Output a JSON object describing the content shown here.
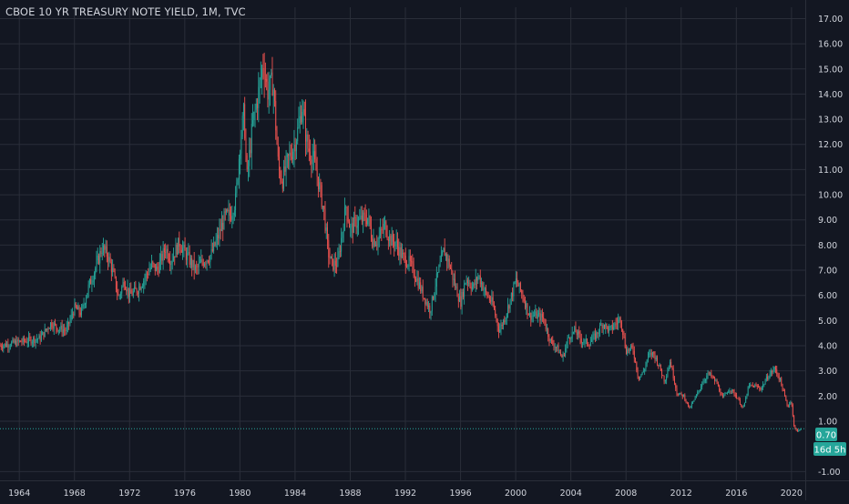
{
  "header": {
    "title": "CBOE 10 YR TREASURY NOTE YIELD, 1M, TVC"
  },
  "price_tag": {
    "value": "0.70",
    "countdown": "16d 5h"
  },
  "colors": {
    "background": "#131722",
    "grid": "#2a2e39",
    "axis_text": "#d1d4dc",
    "up": "#26a69a",
    "down": "#ef5350",
    "last_price": "#26a69a"
  },
  "chart_data": {
    "type": "candlestick",
    "title": "CBOE 10 YR TREASURY NOTE YIELD, 1M, TVC",
    "x_ticks": [
      "1964",
      "1968",
      "1972",
      "1976",
      "1980",
      "1984",
      "1988",
      "1992",
      "1996",
      "2000",
      "2004",
      "2008",
      "2012",
      "2016",
      "2020"
    ],
    "y_ticks": [
      "-1.00",
      "1.00",
      "2.00",
      "3.00",
      "4.00",
      "5.00",
      "6.00",
      "7.00",
      "8.00",
      "9.00",
      "10.00",
      "11.00",
      "12.00",
      "13.00",
      "14.00",
      "15.00",
      "16.00",
      "17.00"
    ],
    "xlim": [
      1962.6,
      2021.0
    ],
    "ylim": [
      -1.35,
      17.45
    ],
    "grid": true,
    "last_price": 0.7,
    "series": [
      {
        "type": "close_path",
        "points": [
          [
            1962.6,
            4.0
          ],
          [
            1963.5,
            4.1
          ],
          [
            1964.5,
            4.2
          ],
          [
            1965.5,
            4.3
          ],
          [
            1966.3,
            4.9
          ],
          [
            1966.8,
            4.7
          ],
          [
            1967.4,
            4.6
          ],
          [
            1968.0,
            5.5
          ],
          [
            1968.5,
            5.3
          ],
          [
            1969.0,
            6.3
          ],
          [
            1969.6,
            7.2
          ],
          [
            1970.0,
            7.9
          ],
          [
            1970.4,
            7.6
          ],
          [
            1970.8,
            6.9
          ],
          [
            1971.2,
            5.9
          ],
          [
            1971.6,
            6.6
          ],
          [
            1972.0,
            6.0
          ],
          [
            1972.5,
            6.2
          ],
          [
            1973.0,
            6.6
          ],
          [
            1973.6,
            7.2
          ],
          [
            1974.0,
            7.0
          ],
          [
            1974.6,
            7.9
          ],
          [
            1975.0,
            7.4
          ],
          [
            1975.6,
            8.1
          ],
          [
            1976.0,
            7.7
          ],
          [
            1976.8,
            7.0
          ],
          [
            1977.2,
            7.3
          ],
          [
            1977.9,
            7.6
          ],
          [
            1978.4,
            8.3
          ],
          [
            1978.9,
            9.1
          ],
          [
            1979.3,
            9.2
          ],
          [
            1979.7,
            9.8
          ],
          [
            1980.0,
            12.0
          ],
          [
            1980.3,
            13.3
          ],
          [
            1980.5,
            10.6
          ],
          [
            1980.9,
            12.7
          ],
          [
            1981.3,
            13.9
          ],
          [
            1981.7,
            15.3
          ],
          [
            1982.0,
            14.1
          ],
          [
            1982.4,
            14.5
          ],
          [
            1982.8,
            11.0
          ],
          [
            1983.1,
            10.6
          ],
          [
            1983.5,
            11.4
          ],
          [
            1983.9,
            11.9
          ],
          [
            1984.3,
            12.8
          ],
          [
            1984.5,
            13.6
          ],
          [
            1984.9,
            11.9
          ],
          [
            1985.3,
            11.5
          ],
          [
            1985.7,
            10.5
          ],
          [
            1986.1,
            9.3
          ],
          [
            1986.4,
            7.7
          ],
          [
            1986.7,
            7.2
          ],
          [
            1987.1,
            7.3
          ],
          [
            1987.7,
            9.6
          ],
          [
            1988.0,
            8.6
          ],
          [
            1988.4,
            8.9
          ],
          [
            1988.8,
            9.0
          ],
          [
            1989.3,
            9.1
          ],
          [
            1989.6,
            8.2
          ],
          [
            1990.0,
            8.2
          ],
          [
            1990.5,
            8.8
          ],
          [
            1990.9,
            8.2
          ],
          [
            1991.3,
            8.1
          ],
          [
            1991.8,
            7.5
          ],
          [
            1992.3,
            7.3
          ],
          [
            1992.8,
            6.7
          ],
          [
            1993.3,
            6.0
          ],
          [
            1993.8,
            5.4
          ],
          [
            1994.2,
            6.5
          ],
          [
            1994.8,
            7.8
          ],
          [
            1995.2,
            7.2
          ],
          [
            1995.6,
            6.4
          ],
          [
            1996.0,
            5.7
          ],
          [
            1996.4,
            6.7
          ],
          [
            1996.9,
            6.3
          ],
          [
            1997.3,
            6.8
          ],
          [
            1997.8,
            6.1
          ],
          [
            1998.3,
            5.7
          ],
          [
            1998.8,
            4.6
          ],
          [
            1999.2,
            5.1
          ],
          [
            1999.7,
            6.0
          ],
          [
            2000.0,
            6.6
          ],
          [
            2000.5,
            6.0
          ],
          [
            2001.0,
            5.2
          ],
          [
            2001.5,
            5.2
          ],
          [
            2002.0,
            5.1
          ],
          [
            2002.5,
            4.2
          ],
          [
            2003.0,
            3.9
          ],
          [
            2003.4,
            3.5
          ],
          [
            2003.8,
            4.3
          ],
          [
            2004.3,
            4.6
          ],
          [
            2004.8,
            4.2
          ],
          [
            2005.3,
            4.1
          ],
          [
            2005.8,
            4.4
          ],
          [
            2006.3,
            4.9
          ],
          [
            2006.8,
            4.6
          ],
          [
            2007.3,
            4.9
          ],
          [
            2007.6,
            5.1
          ],
          [
            2008.0,
            3.8
          ],
          [
            2008.5,
            3.9
          ],
          [
            2008.9,
            2.7
          ],
          [
            2009.3,
            3.0
          ],
          [
            2009.6,
            3.6
          ],
          [
            2010.0,
            3.7
          ],
          [
            2010.4,
            3.2
          ],
          [
            2010.8,
            2.6
          ],
          [
            2011.2,
            3.4
          ],
          [
            2011.7,
            2.1
          ],
          [
            2012.2,
            2.0
          ],
          [
            2012.6,
            1.5
          ],
          [
            2013.0,
            1.9
          ],
          [
            2013.6,
            2.6
          ],
          [
            2014.0,
            2.9
          ],
          [
            2014.6,
            2.5
          ],
          [
            2015.0,
            1.9
          ],
          [
            2015.5,
            2.3
          ],
          [
            2016.0,
            2.0
          ],
          [
            2016.5,
            1.5
          ],
          [
            2016.9,
            2.4
          ],
          [
            2017.3,
            2.4
          ],
          [
            2017.8,
            2.3
          ],
          [
            2018.3,
            2.8
          ],
          [
            2018.8,
            3.1
          ],
          [
            2019.2,
            2.6
          ],
          [
            2019.7,
            1.6
          ],
          [
            2020.0,
            1.8
          ],
          [
            2020.2,
            0.7
          ],
          [
            2020.4,
            0.65
          ],
          [
            2020.6,
            0.65
          ],
          [
            2020.75,
            0.7
          ]
        ]
      }
    ]
  }
}
